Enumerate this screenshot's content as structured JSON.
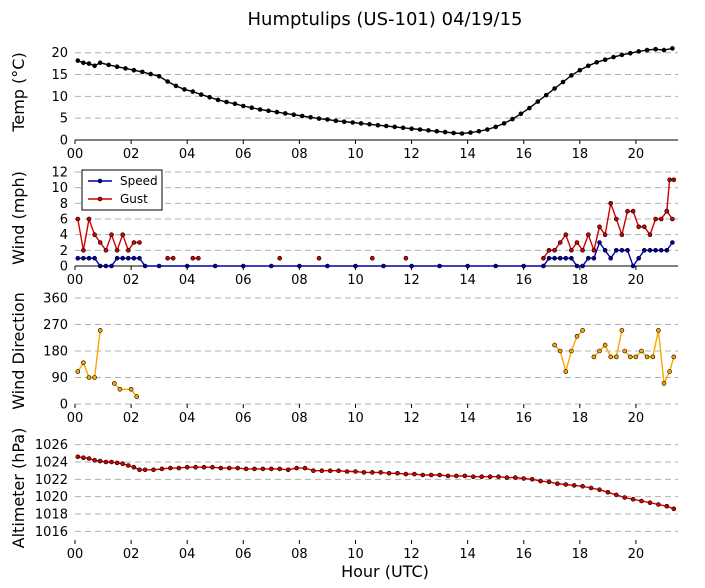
{
  "chart_data": {
    "title": "Humptulips (US-101) 04/19/15",
    "xlabel": "Hour (UTC)",
    "x_ticks": [
      "00",
      "02",
      "04",
      "06",
      "08",
      "10",
      "12",
      "14",
      "16",
      "18",
      "20"
    ],
    "xlim": [
      0,
      21.5
    ],
    "panels": [
      {
        "id": "temp",
        "type": "line",
        "ylabel": "Temp (°C)",
        "ylim": [
          0,
          22
        ],
        "yticks": [
          0,
          5,
          10,
          15,
          20
        ],
        "grid": "horizontal-dashed",
        "series": [
          {
            "color": "#000000",
            "x": [
              0.1,
              0.3,
              0.5,
              0.7,
              0.9,
              1.2,
              1.5,
              1.8,
              2.1,
              2.4,
              2.7,
              3.0,
              3.3,
              3.6,
              3.9,
              4.2,
              4.5,
              4.8,
              5.1,
              5.4,
              5.7,
              6.0,
              6.3,
              6.6,
              6.9,
              7.2,
              7.5,
              7.8,
              8.1,
              8.4,
              8.7,
              9.0,
              9.3,
              9.6,
              9.9,
              10.2,
              10.5,
              10.8,
              11.1,
              11.4,
              11.7,
              12.0,
              12.3,
              12.6,
              12.9,
              13.2,
              13.5,
              13.8,
              14.1,
              14.4,
              14.7,
              15.0,
              15.3,
              15.6,
              15.9,
              16.2,
              16.5,
              16.8,
              17.1,
              17.4,
              17.7,
              18.0,
              18.3,
              18.6,
              18.9,
              19.2,
              19.5,
              19.8,
              20.1,
              20.4,
              20.7,
              21.0,
              21.3
            ],
            "y": [
              18.2,
              17.7,
              17.5,
              17.0,
              17.7,
              17.2,
              16.8,
              16.4,
              16.0,
              15.6,
              15.1,
              14.6,
              13.4,
              12.4,
              11.6,
              11.1,
              10.4,
              9.8,
              9.2,
              8.7,
              8.3,
              7.8,
              7.4,
              7.0,
              6.7,
              6.4,
              6.1,
              5.8,
              5.5,
              5.2,
              4.9,
              4.7,
              4.4,
              4.2,
              4.0,
              3.8,
              3.6,
              3.4,
              3.2,
              3.0,
              2.8,
              2.6,
              2.4,
              2.2,
              2.0,
              1.8,
              1.6,
              1.5,
              1.7,
              2.0,
              2.4,
              3.0,
              3.8,
              4.8,
              6.0,
              7.3,
              8.8,
              10.3,
              11.8,
              13.3,
              14.8,
              16.0,
              17.0,
              17.8,
              18.4,
              19.0,
              19.5,
              19.9,
              20.3,
              20.6,
              20.8,
              20.6,
              21.0
            ]
          }
        ]
      },
      {
        "id": "wind",
        "type": "line",
        "ylabel": "Wind (mph)",
        "ylim": [
          0,
          12
        ],
        "yticks": [
          0,
          2,
          4,
          6,
          8,
          10,
          12
        ],
        "grid": "horizontal-dashed",
        "legend": "top-left",
        "series": [
          {
            "name": "Speed",
            "color": "#0000aa",
            "x": [
              0.1,
              0.3,
              0.5,
              0.7,
              0.9,
              1.1,
              1.3,
              1.5,
              1.7,
              1.9,
              2.1,
              2.3,
              2.5,
              3.0,
              4.0,
              5.0,
              6.0,
              7.0,
              8.0,
              9.0,
              10.0,
              11.0,
              12.0,
              13.0,
              14.0,
              15.0,
              16.0,
              16.7,
              16.9,
              17.1,
              17.3,
              17.5,
              17.7,
              17.9,
              18.1,
              18.3,
              18.5,
              18.7,
              18.9,
              19.1,
              19.3,
              19.5,
              19.7,
              19.9,
              20.1,
              20.3,
              20.5,
              20.7,
              20.9,
              21.1,
              21.3
            ],
            "y": [
              1,
              1,
              1,
              1,
              0,
              0,
              0,
              1,
              1,
              1,
              1,
              1,
              0,
              0,
              0,
              0,
              0,
              0,
              0,
              0,
              0,
              0,
              0,
              0,
              0,
              0,
              0,
              0,
              1,
              1,
              1,
              1,
              1,
              0,
              0,
              1,
              1,
              3,
              2,
              1,
              2,
              2,
              2,
              0,
              1,
              2,
              2,
              2,
              2,
              2,
              3
            ]
          },
          {
            "name": "Gust",
            "color": "#cc0000",
            "segments": [
              {
                "x": [
                  0.1,
                  0.3,
                  0.5,
                  0.7,
                  0.9,
                  1.1,
                  1.3,
                  1.5,
                  1.7,
                  1.9,
                  2.1,
                  2.3
                ],
                "y": [
                  6,
                  2,
                  6,
                  4,
                  3,
                  2,
                  4,
                  2,
                  4,
                  2,
                  3,
                  3
                ]
              },
              {
                "x": [
                  3.3,
                  3.5
                ],
                "y": [
                  1,
                  1
                ]
              },
              {
                "x": [
                  4.2,
                  4.4
                ],
                "y": [
                  1,
                  1
                ]
              },
              {
                "x": [
                  7.3
                ],
                "y": [
                  1
                ]
              },
              {
                "x": [
                  8.7
                ],
                "y": [
                  1
                ]
              },
              {
                "x": [
                  10.6
                ],
                "y": [
                  1
                ]
              },
              {
                "x": [
                  11.8
                ],
                "y": [
                  1
                ]
              },
              {
                "x": [
                  16.7,
                  16.9,
                  17.1,
                  17.3,
                  17.5,
                  17.7,
                  17.9,
                  18.1,
                  18.3,
                  18.5,
                  18.7,
                  18.9,
                  19.1,
                  19.3,
                  19.5,
                  19.7,
                  19.9,
                  20.1,
                  20.3,
                  20.5,
                  20.7,
                  20.9,
                  21.1,
                  21.3
                ],
                "y": [
                  1,
                  2,
                  2,
                  3,
                  4,
                  2,
                  3,
                  2,
                  4,
                  2,
                  5,
                  4,
                  8,
                  6,
                  4,
                  7,
                  7,
                  5,
                  5,
                  4,
                  6,
                  6,
                  7,
                  6
                ]
              },
              {
                "x": [
                  21.1,
                  21.2,
                  21.35
                ],
                "y": [
                  7,
                  11,
                  11
                ]
              }
            ]
          }
        ]
      },
      {
        "id": "direction",
        "type": "line",
        "ylabel": "Wind Direction",
        "ylim": [
          0,
          360
        ],
        "yticks": [
          0,
          90,
          180,
          270,
          360
        ],
        "grid": "horizontal-dashed",
        "series": [
          {
            "color": "#ffa500",
            "segments": [
              {
                "x": [
                  0.1,
                  0.3,
                  0.5,
                  0.7,
                  0.9
                ],
                "y": [
                  110,
                  140,
                  90,
                  90,
                  250
                ]
              },
              {
                "x": [
                  1.4,
                  1.6,
                  2.0,
                  2.2
                ],
                "y": [
                  70,
                  50,
                  50,
                  25
                ]
              },
              {
                "x": [
                  17.1,
                  17.3,
                  17.5,
                  17.7,
                  17.9,
                  18.1
                ],
                "y": [
                  200,
                  180,
                  110,
                  180,
                  230,
                  250
                ]
              },
              {
                "x": [
                  18.5,
                  18.7,
                  18.9,
                  19.1,
                  19.3,
                  19.5
                ],
                "y": [
                  160,
                  180,
                  200,
                  160,
                  160,
                  250
                ]
              },
              {
                "x": [
                  19.6,
                  19.8,
                  20.0,
                  20.2,
                  20.4,
                  20.6,
                  20.8,
                  21.0,
                  21.2,
                  21.35
                ],
                "y": [
                  180,
                  160,
                  160,
                  180,
                  160,
                  160,
                  250,
                  70,
                  110,
                  160
                ]
              }
            ]
          }
        ]
      },
      {
        "id": "altimeter",
        "type": "line",
        "ylabel": "Altimeter (hPa)",
        "ylim": [
          1015,
          1027
        ],
        "yticks": [
          1016,
          1018,
          1020,
          1022,
          1024,
          1026
        ],
        "grid": "horizontal-dashed",
        "series": [
          {
            "color": "#cc0000",
            "x": [
              0.1,
              0.3,
              0.5,
              0.7,
              0.9,
              1.1,
              1.3,
              1.5,
              1.7,
              1.9,
              2.1,
              2.3,
              2.5,
              2.8,
              3.1,
              3.4,
              3.7,
              4.0,
              4.3,
              4.6,
              4.9,
              5.2,
              5.5,
              5.8,
              6.1,
              6.4,
              6.7,
              7.0,
              7.3,
              7.6,
              7.9,
              8.2,
              8.5,
              8.8,
              9.1,
              9.4,
              9.7,
              10.0,
              10.3,
              10.6,
              10.9,
              11.2,
              11.5,
              11.8,
              12.1,
              12.4,
              12.7,
              13.0,
              13.3,
              13.6,
              13.9,
              14.2,
              14.5,
              14.8,
              15.1,
              15.4,
              15.7,
              16.0,
              16.3,
              16.6,
              16.9,
              17.2,
              17.5,
              17.8,
              18.1,
              18.4,
              18.7,
              19.0,
              19.3,
              19.6,
              19.9,
              20.2,
              20.5,
              20.8,
              21.1,
              21.35
            ],
            "y": [
              1024.6,
              1024.5,
              1024.4,
              1024.2,
              1024.1,
              1024.0,
              1024.0,
              1023.9,
              1023.8,
              1023.6,
              1023.4,
              1023.1,
              1023.1,
              1023.1,
              1023.2,
              1023.3,
              1023.3,
              1023.4,
              1023.4,
              1023.4,
              1023.4,
              1023.3,
              1023.3,
              1023.3,
              1023.2,
              1023.2,
              1023.2,
              1023.2,
              1023.2,
              1023.1,
              1023.3,
              1023.3,
              1023.0,
              1023.0,
              1023.0,
              1023.0,
              1022.9,
              1022.9,
              1022.8,
              1022.8,
              1022.8,
              1022.7,
              1022.7,
              1022.6,
              1022.6,
              1022.5,
              1022.5,
              1022.5,
              1022.4,
              1022.4,
              1022.4,
              1022.3,
              1022.3,
              1022.3,
              1022.3,
              1022.2,
              1022.2,
              1022.1,
              1022.0,
              1021.8,
              1021.7,
              1021.5,
              1021.4,
              1021.3,
              1021.2,
              1021.0,
              1020.8,
              1020.5,
              1020.2,
              1019.9,
              1019.7,
              1019.5,
              1019.3,
              1019.1,
              1018.9,
              1018.6
            ]
          }
        ]
      }
    ]
  }
}
